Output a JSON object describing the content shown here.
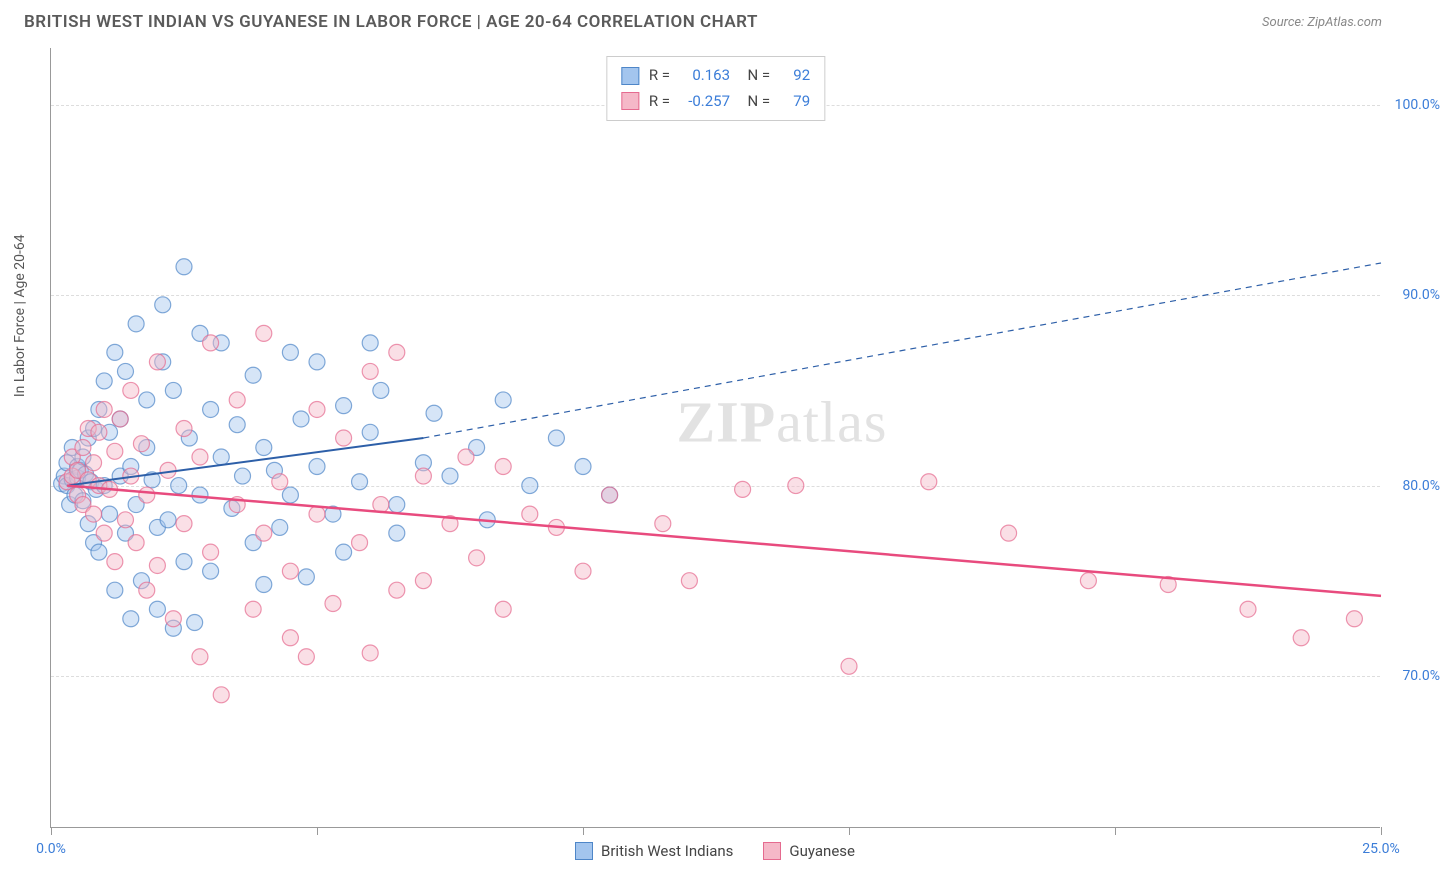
{
  "header": {
    "title": "BRITISH WEST INDIAN VS GUYANESE IN LABOR FORCE | AGE 20-64 CORRELATION CHART",
    "source": "Source: ZipAtlas.com"
  },
  "watermark": {
    "bold": "ZIP",
    "light": "atlas"
  },
  "chart": {
    "type": "scatter",
    "y_title": "In Labor Force | Age 20-64",
    "xlim": [
      0.0,
      25.0
    ],
    "ylim": [
      62.0,
      103.0
    ],
    "x_ticks": [
      0.0,
      5.0,
      10.0,
      15.0,
      20.0,
      25.0
    ],
    "x_tick_labels": [
      "0.0%",
      "",
      "",
      "",
      "",
      "25.0%"
    ],
    "y_ticks": [
      70.0,
      80.0,
      90.0,
      100.0
    ],
    "y_tick_labels": [
      "70.0%",
      "80.0%",
      "90.0%",
      "100.0%"
    ],
    "background_color": "#ffffff",
    "grid_color": "#dddddd",
    "axis_color": "#999999",
    "label_color": "#3b7dd8",
    "marker_radius": 8,
    "marker_opacity": 0.45,
    "marker_stroke_width": 1.2,
    "series": [
      {
        "name": "British West Indians",
        "color_fill": "#a3c5ee",
        "color_stroke": "#4e86c8",
        "R": "0.163",
        "N": "92",
        "trend": {
          "x1": 0.3,
          "y1": 80.0,
          "x2": 7.0,
          "y2": 82.5,
          "dash_x2": 25.0,
          "dash_y2": 91.7,
          "color": "#2d5fa8",
          "width": 2
        },
        "points": [
          [
            0.2,
            80.1
          ],
          [
            0.25,
            80.5
          ],
          [
            0.3,
            80.0
          ],
          [
            0.3,
            81.2
          ],
          [
            0.35,
            79.0
          ],
          [
            0.4,
            82.0
          ],
          [
            0.4,
            80.3
          ],
          [
            0.45,
            79.5
          ],
          [
            0.5,
            81.0
          ],
          [
            0.5,
            80.4
          ],
          [
            0.55,
            80.8
          ],
          [
            0.6,
            79.2
          ],
          [
            0.6,
            81.5
          ],
          [
            0.65,
            80.6
          ],
          [
            0.7,
            82.5
          ],
          [
            0.7,
            78.0
          ],
          [
            0.75,
            80.2
          ],
          [
            0.8,
            83.0
          ],
          [
            0.8,
            77.0
          ],
          [
            0.85,
            79.8
          ],
          [
            0.9,
            76.5
          ],
          [
            0.9,
            84.0
          ],
          [
            1.0,
            80.0
          ],
          [
            1.0,
            85.5
          ],
          [
            1.1,
            78.5
          ],
          [
            1.1,
            82.8
          ],
          [
            1.2,
            87.0
          ],
          [
            1.2,
            74.5
          ],
          [
            1.3,
            80.5
          ],
          [
            1.3,
            83.5
          ],
          [
            1.4,
            77.5
          ],
          [
            1.4,
            86.0
          ],
          [
            1.5,
            73.0
          ],
          [
            1.5,
            81.0
          ],
          [
            1.6,
            88.5
          ],
          [
            1.6,
            79.0
          ],
          [
            1.7,
            75.0
          ],
          [
            1.8,
            82.0
          ],
          [
            1.8,
            84.5
          ],
          [
            1.9,
            80.3
          ],
          [
            2.0,
            77.8
          ],
          [
            2.0,
            73.5
          ],
          [
            2.1,
            86.5
          ],
          [
            2.1,
            89.5
          ],
          [
            2.2,
            78.2
          ],
          [
            2.3,
            72.5
          ],
          [
            2.3,
            85.0
          ],
          [
            2.4,
            80.0
          ],
          [
            2.5,
            91.5
          ],
          [
            2.5,
            76.0
          ],
          [
            2.6,
            82.5
          ],
          [
            2.7,
            72.8
          ],
          [
            2.8,
            88.0
          ],
          [
            2.8,
            79.5
          ],
          [
            3.0,
            84.0
          ],
          [
            3.0,
            75.5
          ],
          [
            3.2,
            81.5
          ],
          [
            3.2,
            87.5
          ],
          [
            3.4,
            78.8
          ],
          [
            3.5,
            83.2
          ],
          [
            3.6,
            80.5
          ],
          [
            3.8,
            85.8
          ],
          [
            3.8,
            77.0
          ],
          [
            4.0,
            82.0
          ],
          [
            4.0,
            74.8
          ],
          [
            4.2,
            80.8
          ],
          [
            4.3,
            77.8
          ],
          [
            4.5,
            87.0
          ],
          [
            4.5,
            79.5
          ],
          [
            4.7,
            83.5
          ],
          [
            4.8,
            75.2
          ],
          [
            5.0,
            81.0
          ],
          [
            5.0,
            86.5
          ],
          [
            5.3,
            78.5
          ],
          [
            5.5,
            84.2
          ],
          [
            5.5,
            76.5
          ],
          [
            5.8,
            80.2
          ],
          [
            6.0,
            87.5
          ],
          [
            6.0,
            82.8
          ],
          [
            6.2,
            85.0
          ],
          [
            6.5,
            79.0
          ],
          [
            6.5,
            77.5
          ],
          [
            7.0,
            81.2
          ],
          [
            7.2,
            83.8
          ],
          [
            7.5,
            80.5
          ],
          [
            8.0,
            82.0
          ],
          [
            8.2,
            78.2
          ],
          [
            8.5,
            84.5
          ],
          [
            9.0,
            80.0
          ],
          [
            9.5,
            82.5
          ],
          [
            10.0,
            81.0
          ],
          [
            10.5,
            79.5
          ]
        ]
      },
      {
        "name": "Guyanese",
        "color_fill": "#f5b8c8",
        "color_stroke": "#e56a8f",
        "R": "-0.257",
        "N": "79",
        "trend": {
          "x1": 0.3,
          "y1": 80.0,
          "x2": 25.0,
          "y2": 74.2,
          "color": "#e84b7e",
          "width": 2.5
        },
        "points": [
          [
            0.3,
            80.2
          ],
          [
            0.4,
            80.5
          ],
          [
            0.4,
            81.5
          ],
          [
            0.5,
            79.5
          ],
          [
            0.5,
            80.8
          ],
          [
            0.6,
            82.0
          ],
          [
            0.6,
            79.0
          ],
          [
            0.7,
            80.3
          ],
          [
            0.7,
            83.0
          ],
          [
            0.8,
            78.5
          ],
          [
            0.8,
            81.2
          ],
          [
            0.9,
            80.0
          ],
          [
            0.9,
            82.8
          ],
          [
            1.0,
            77.5
          ],
          [
            1.0,
            84.0
          ],
          [
            1.1,
            79.8
          ],
          [
            1.2,
            81.8
          ],
          [
            1.2,
            76.0
          ],
          [
            1.3,
            83.5
          ],
          [
            1.4,
            78.2
          ],
          [
            1.5,
            80.5
          ],
          [
            1.5,
            85.0
          ],
          [
            1.6,
            77.0
          ],
          [
            1.7,
            82.2
          ],
          [
            1.8,
            74.5
          ],
          [
            1.8,
            79.5
          ],
          [
            2.0,
            86.5
          ],
          [
            2.0,
            75.8
          ],
          [
            2.2,
            80.8
          ],
          [
            2.3,
            73.0
          ],
          [
            2.5,
            83.0
          ],
          [
            2.5,
            78.0
          ],
          [
            2.8,
            71.0
          ],
          [
            2.8,
            81.5
          ],
          [
            3.0,
            87.5
          ],
          [
            3.0,
            76.5
          ],
          [
            3.2,
            69.0
          ],
          [
            3.5,
            79.0
          ],
          [
            3.5,
            84.5
          ],
          [
            3.8,
            73.5
          ],
          [
            4.0,
            88.0
          ],
          [
            4.0,
            77.5
          ],
          [
            4.3,
            80.2
          ],
          [
            4.5,
            72.0
          ],
          [
            4.5,
            75.5
          ],
          [
            4.8,
            71.0
          ],
          [
            5.0,
            78.5
          ],
          [
            5.0,
            84.0
          ],
          [
            5.3,
            73.8
          ],
          [
            5.5,
            82.5
          ],
          [
            5.8,
            77.0
          ],
          [
            6.0,
            71.2
          ],
          [
            6.0,
            86.0
          ],
          [
            6.2,
            79.0
          ],
          [
            6.5,
            74.5
          ],
          [
            6.5,
            87.0
          ],
          [
            7.0,
            80.5
          ],
          [
            7.0,
            75.0
          ],
          [
            7.5,
            78.0
          ],
          [
            7.8,
            81.5
          ],
          [
            8.0,
            76.2
          ],
          [
            8.5,
            73.5
          ],
          [
            8.5,
            81.0
          ],
          [
            9.0,
            78.5
          ],
          [
            9.5,
            77.8
          ],
          [
            10.0,
            75.5
          ],
          [
            10.5,
            79.5
          ],
          [
            11.5,
            78.0
          ],
          [
            12.0,
            75.0
          ],
          [
            13.0,
            79.8
          ],
          [
            14.0,
            80.0
          ],
          [
            15.0,
            70.5
          ],
          [
            16.5,
            80.2
          ],
          [
            18.0,
            77.5
          ],
          [
            19.5,
            75.0
          ],
          [
            21.0,
            74.8
          ],
          [
            22.5,
            73.5
          ],
          [
            23.5,
            72.0
          ],
          [
            24.5,
            73.0
          ]
        ]
      }
    ],
    "legend_bottom": [
      "British West Indians",
      "Guyanese"
    ]
  }
}
